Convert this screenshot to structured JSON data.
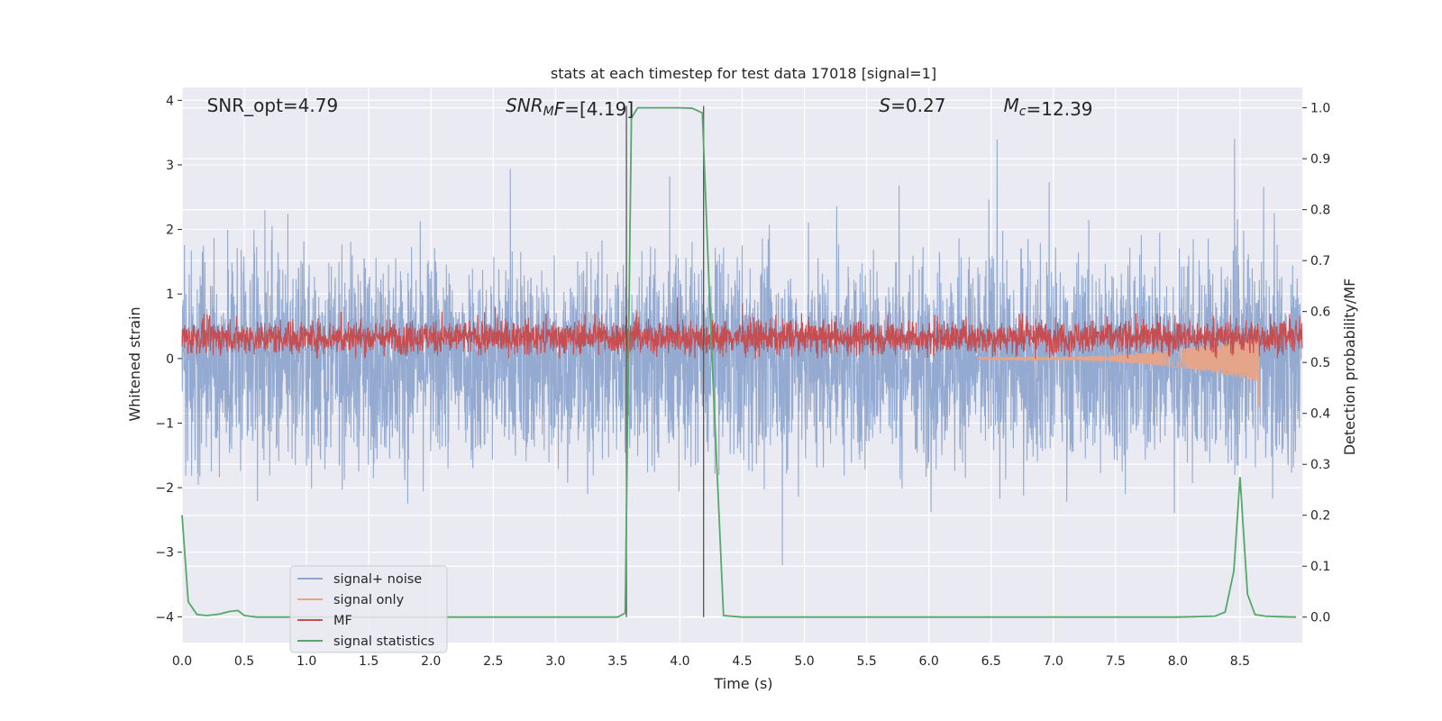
{
  "chart_data": {
    "type": "line",
    "title": "stats at each timestep for test data 17018 [signal=1]",
    "xlabel": "Time (s)",
    "ylabel": "Whitened strain",
    "ylabel_right": "Detection probability/MF",
    "xlim": [
      0.0,
      9.0
    ],
    "ylim": [
      -4.4,
      4.2
    ],
    "ylim_right": [
      -0.05,
      1.04
    ],
    "x_ticks": [
      "0.0",
      "0.5",
      "1.0",
      "1.5",
      "2.0",
      "2.5",
      "3.0",
      "3.5",
      "4.0",
      "4.5",
      "5.0",
      "5.5",
      "6.0",
      "6.5",
      "7.0",
      "7.5",
      "8.0",
      "8.5"
    ],
    "y_ticks": [
      "−4",
      "−3",
      "−2",
      "−1",
      "0",
      "1",
      "2",
      "3",
      "4"
    ],
    "y_ticks_right": [
      "0.0",
      "0.1",
      "0.2",
      "0.3",
      "0.4",
      "0.5",
      "0.6",
      "0.7",
      "0.8",
      "0.9",
      "1.0"
    ],
    "grid": true,
    "legend_position": "lower-left",
    "annotations": [
      {
        "prefix": "SNR_opt=4.79",
        "italic": "",
        "sub": "",
        "suffix": "",
        "x": 0.2
      },
      {
        "prefix": "",
        "italic": "SNR",
        "sub": "M",
        "italic2": "F",
        "suffix": "=[4.19]",
        "x": 2.6
      },
      {
        "prefix": "",
        "italic": "S",
        "sub": "",
        "suffix": "=0.27",
        "x": 5.6
      },
      {
        "prefix": "",
        "italic": "M",
        "sub": "c",
        "suffix": "=12.39",
        "x": 6.6
      }
    ],
    "vertical_lines": [
      3.57,
      4.19
    ],
    "series": [
      {
        "name": "signal+ noise",
        "color": "#8fa6cd",
        "style": "noise band",
        "range": [
          -2.6,
          3.4
        ]
      },
      {
        "name": "signal only",
        "color": "#e5a58b",
        "style": "chirp",
        "range": [
          -0.8,
          0.6
        ]
      },
      {
        "name": "MF",
        "color": "#c44e52",
        "style": "noise band",
        "range": [
          0.0,
          0.95
        ],
        "axis": "left"
      },
      {
        "name": "signal statistics",
        "color": "#55a868",
        "axis": "right",
        "x": [
          0.0,
          0.05,
          0.12,
          0.2,
          0.3,
          0.38,
          0.45,
          0.5,
          0.6,
          1.0,
          2.0,
          3.0,
          3.5,
          3.56,
          3.61,
          3.66,
          3.75,
          4.0,
          4.1,
          4.18,
          4.25,
          4.35,
          4.5,
          5.0,
          6.0,
          7.0,
          8.0,
          8.3,
          8.38,
          8.45,
          8.5,
          8.56,
          8.62,
          8.7,
          8.8,
          8.95
        ],
        "y": [
          0.2,
          0.03,
          0.005,
          0.003,
          0.006,
          0.011,
          0.013,
          0.003,
          0.0,
          0.0,
          0.0,
          0.0,
          0.0,
          0.008,
          0.98,
          1.0,
          1.0,
          1.0,
          0.999,
          0.99,
          0.55,
          0.003,
          0.0,
          0.0,
          0.0,
          0.0,
          0.0,
          0.002,
          0.01,
          0.09,
          0.275,
          0.045,
          0.005,
          0.002,
          0.001,
          0.0
        ]
      }
    ]
  }
}
